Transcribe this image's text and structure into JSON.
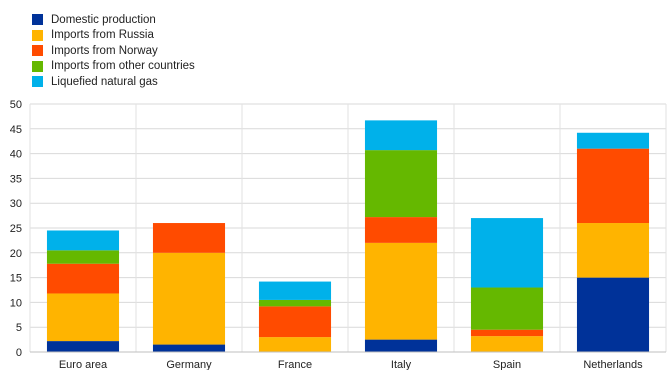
{
  "chart_data": {
    "type": "bar",
    "stacked": true,
    "categories": [
      "Euro area",
      "Germany",
      "France",
      "Italy",
      "Spain",
      "Netherlands"
    ],
    "series": [
      {
        "name": "Domestic production",
        "color": "#003299",
        "values": [
          2.2,
          1.5,
          0,
          2.5,
          0,
          15
        ]
      },
      {
        "name": "Imports from Russia",
        "color": "#FFB400",
        "values": [
          9.6,
          18.5,
          3.0,
          19.5,
          3.2,
          11
        ]
      },
      {
        "name": "Imports from Norway",
        "color": "#FF4B00",
        "values": [
          6.0,
          6.0,
          6.2,
          5.2,
          1.3,
          15
        ]
      },
      {
        "name": "Imports from other countries",
        "color": "#65B800",
        "values": [
          2.7,
          0,
          1.3,
          13.5,
          8.5,
          0
        ]
      },
      {
        "name": "Liquefied natural gas",
        "color": "#00B1EA",
        "values": [
          4.0,
          0,
          3.7,
          6.0,
          14.0,
          3.2
        ]
      }
    ],
    "yticks": [
      "0",
      "5",
      "10",
      "15",
      "20",
      "25",
      "30",
      "35",
      "40",
      "45",
      "50"
    ],
    "ylim": [
      0,
      50
    ],
    "legend_position": "top-left",
    "grid": true
  }
}
